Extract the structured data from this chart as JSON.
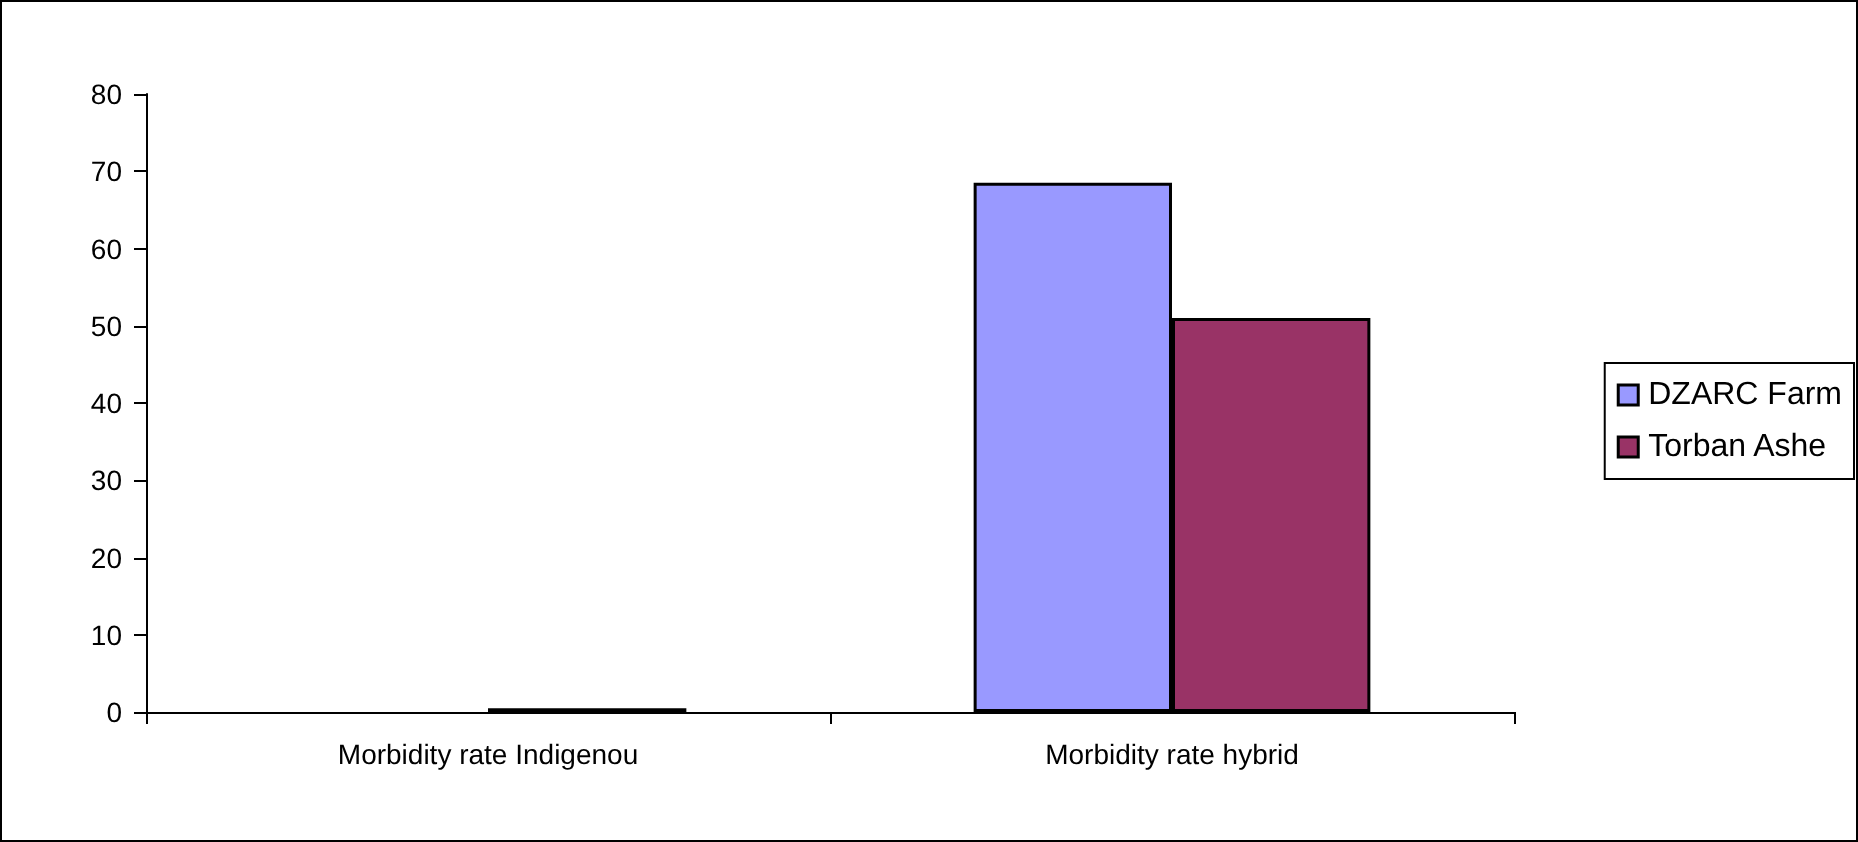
{
  "chart_data": {
    "type": "bar",
    "categories": [
      "Morbidity rate Indigenou",
      "Morbidity rate hybrid"
    ],
    "series": [
      {
        "name": "DZARC Farm",
        "color": "#9999ff",
        "values": [
          null,
          68.5
        ]
      },
      {
        "name": "Torban Ashe",
        "color": "#993366",
        "values": [
          0.5,
          51
        ]
      }
    ],
    "ylim": [
      0,
      80
    ],
    "yticks": [
      0,
      10,
      20,
      30,
      40,
      50,
      60,
      70,
      80
    ],
    "grid": false,
    "legend": "right"
  }
}
